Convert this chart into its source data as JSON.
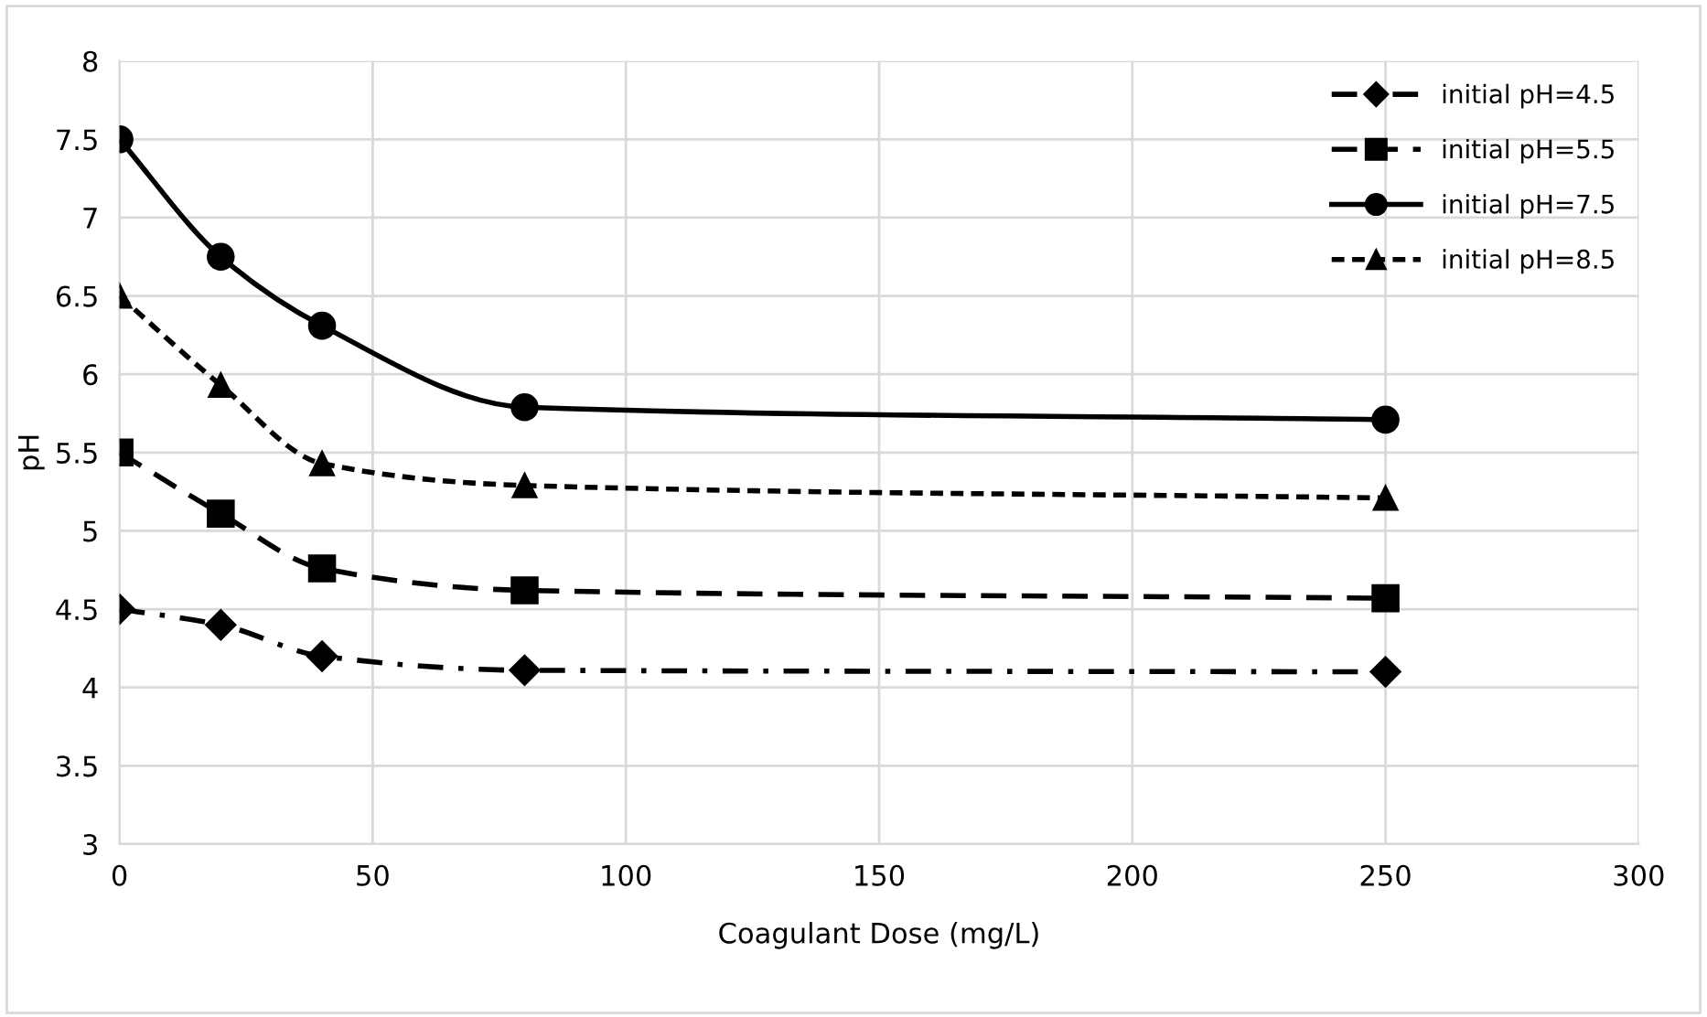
{
  "chart_data": {
    "type": "line",
    "xlabel": "Coagulant Dose (mg/L)",
    "ylabel": "pH",
    "x": [
      0,
      20,
      40,
      80,
      250
    ],
    "series": [
      {
        "name": "initial pH=4.5",
        "color": "#000000",
        "marker": "diamond",
        "line_style": "dashdot",
        "values": [
          4.5,
          4.4,
          4.2,
          4.11,
          4.1
        ]
      },
      {
        "name": "initial pH=5.5",
        "color": "#000000",
        "marker": "square",
        "line_style": "dashed",
        "values": [
          5.5,
          5.11,
          4.76,
          4.62,
          4.57
        ]
      },
      {
        "name": "initial pH=7.5",
        "color": "#000000",
        "marker": "circle",
        "line_style": "solid",
        "values": [
          7.5,
          6.75,
          6.31,
          5.79,
          5.71
        ]
      },
      {
        "name": "initial pH=8.5",
        "color": "#000000",
        "marker": "triangle",
        "line_style": "dotted",
        "values": [
          6.5,
          5.93,
          5.43,
          5.29,
          5.21
        ]
      }
    ],
    "xlim": [
      0,
      300
    ],
    "xticks": [
      0,
      50,
      100,
      150,
      200,
      250,
      300
    ],
    "ylim": [
      3,
      8
    ],
    "yticks": [
      3,
      3.5,
      4,
      4.5,
      5,
      5.5,
      6,
      6.5,
      7,
      7.5,
      8
    ],
    "grid": true,
    "legend": "top right"
  }
}
